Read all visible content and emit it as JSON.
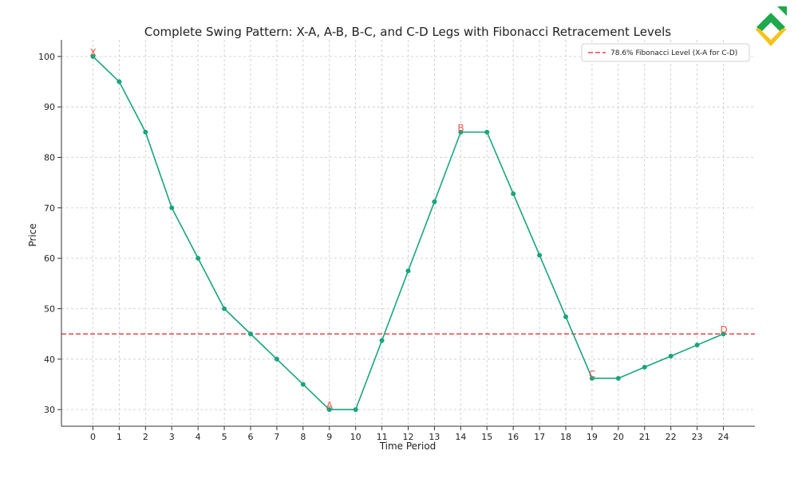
{
  "colors": {
    "line": "#17a57d",
    "fib_line": "#d62728",
    "label": "#e8574a",
    "grid": "#c8c8c8",
    "axis": "#333333",
    "logo_green": "#1fa84e",
    "logo_yellow": "#f7c21a"
  },
  "logo": {
    "icon": "brand-logo-icon"
  },
  "chart_data": {
    "type": "line",
    "title": "Complete Swing Pattern: X-A, A-B, B-C, and C-D Legs with Fibonacci Retracement Levels",
    "xlabel": "Time Period",
    "ylabel": "Price",
    "xlim": [
      -1.2,
      25.2
    ],
    "ylim": [
      26.7,
      103.3
    ],
    "grid": true,
    "legend_position": "top-right",
    "x_ticks": [
      0,
      1,
      2,
      3,
      4,
      5,
      6,
      7,
      8,
      9,
      10,
      11,
      12,
      13,
      14,
      15,
      16,
      17,
      18,
      19,
      20,
      21,
      22,
      23,
      24
    ],
    "y_ticks": [
      30,
      40,
      50,
      60,
      70,
      80,
      90,
      100
    ],
    "series": [
      {
        "x": [
          0,
          1,
          2,
          3,
          4,
          5,
          6,
          7,
          8,
          9,
          10,
          11,
          12,
          13,
          14,
          15,
          16,
          17,
          18,
          19,
          20,
          21,
          22,
          23,
          24
        ],
        "y": [
          100,
          95,
          85,
          70,
          60,
          50,
          45,
          40,
          35,
          30,
          30,
          43.7,
          57.5,
          71.2,
          85,
          85,
          72.8,
          60.6,
          48.4,
          36.2,
          36.2,
          38.4,
          40.6,
          42.8,
          45
        ]
      }
    ],
    "reference_lines": [
      {
        "y": 45,
        "label": "78.6% Fibonacci Level (X-A for C-D)",
        "style": "dashed"
      }
    ],
    "annotations": [
      {
        "text": "X",
        "x": 0,
        "y": 100
      },
      {
        "text": "A",
        "x": 9,
        "y": 30
      },
      {
        "text": "B",
        "x": 14,
        "y": 85
      },
      {
        "text": "C",
        "x": 19,
        "y": 36.2
      },
      {
        "text": "D",
        "x": 24,
        "y": 45
      }
    ]
  }
}
